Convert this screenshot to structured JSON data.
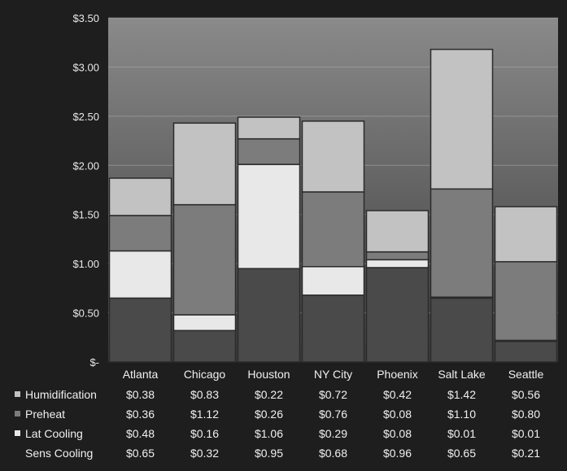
{
  "chart_data": {
    "type": "bar",
    "stacked": true,
    "categories": [
      "Atlanta",
      "Chicago",
      "Houston",
      "NY City",
      "Phoenix",
      "Salt Lake",
      "Seattle"
    ],
    "series": [
      {
        "name": "Sens Cooling",
        "values": [
          0.65,
          0.32,
          0.95,
          0.68,
          0.96,
          0.65,
          0.21
        ],
        "labels": [
          "$0.65",
          "$0.32",
          "$0.95",
          "$0.68",
          "$0.96",
          "$0.65",
          "$0.21"
        ],
        "color": "#4a4a4a"
      },
      {
        "name": "Lat Cooling",
        "values": [
          0.48,
          0.16,
          1.06,
          0.29,
          0.08,
          0.01,
          0.01
        ],
        "labels": [
          "$0.48",
          "$0.16",
          "$1.06",
          "$0.29",
          "$0.08",
          "$0.01",
          "$0.01"
        ],
        "color": "#e8e8e8"
      },
      {
        "name": "Preheat",
        "values": [
          0.36,
          1.12,
          0.26,
          0.76,
          0.08,
          1.1,
          0.8
        ],
        "labels": [
          "$0.36",
          "$1.12",
          "$0.26",
          "$0.76",
          "$0.08",
          "$1.10",
          "$0.80"
        ],
        "color": "#7c7c7c"
      },
      {
        "name": "Humidification",
        "values": [
          0.38,
          0.83,
          0.22,
          0.72,
          0.42,
          1.42,
          0.56
        ],
        "labels": [
          "$0.38",
          "$0.83",
          "$0.22",
          "$0.72",
          "$0.42",
          "$1.42",
          "$0.56"
        ],
        "color": "#c2c2c2"
      }
    ],
    "table_row_order": [
      "Humidification",
      "Preheat",
      "Lat Cooling",
      "Sens Cooling"
    ],
    "ylim": [
      0,
      3.5
    ],
    "yticks": [
      {
        "value": 0,
        "label": "$-"
      },
      {
        "value": 0.5,
        "label": "$0.50"
      },
      {
        "value": 1.0,
        "label": "$1.00"
      },
      {
        "value": 1.5,
        "label": "$1.50"
      },
      {
        "value": 2.0,
        "label": "$2.00"
      },
      {
        "value": 2.5,
        "label": "$2.50"
      },
      {
        "value": 3.0,
        "label": "$3.00"
      },
      {
        "value": 3.5,
        "label": "$3.50"
      }
    ],
    "grid": true,
    "legend": "data table below chart",
    "colors": {
      "plot_top": "#8a8a8a",
      "plot_bottom": "#3c3c3c",
      "frame": "#1e1e1e",
      "gridline": "#b0b0b0",
      "outline": "#2a2a2a"
    }
  }
}
